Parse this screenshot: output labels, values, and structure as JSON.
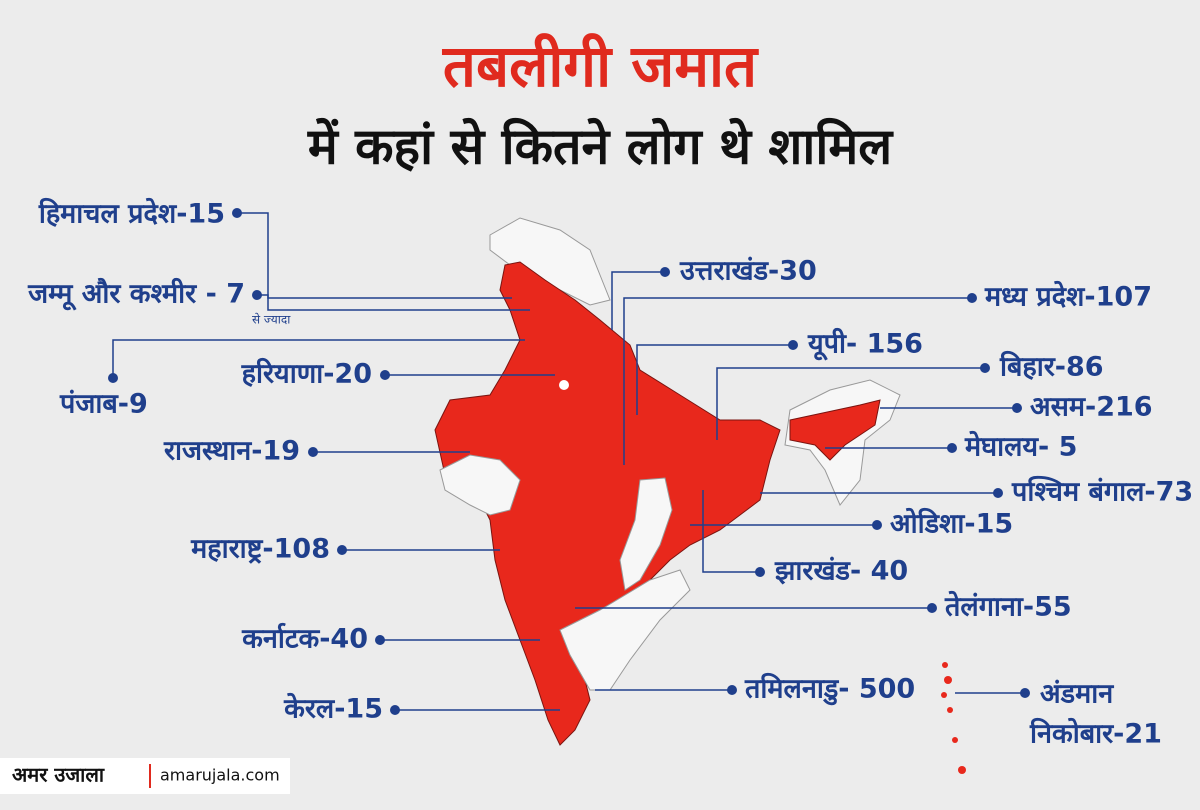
{
  "header": {
    "title": "तबलीगी जमात",
    "subtitle": "में कहां से कितने लोग थे शामिल"
  },
  "labels": [
    "हिमाचल प्रदेश-15",
    "जम्मू और कश्मीर - 7",
    "पंजाब-9",
    "हरियाणा-20",
    "राजस्थान-19",
    "महाराष्ट्र-108",
    "कर्नाटक-40",
    "केरल-15",
    "उत्तराखंड-30",
    "मध्य प्रदेश-107",
    "यूपी- 156",
    "बिहार-86",
    "असम-216",
    "मेघालय- 5",
    "पश्चिम बंगाल-73",
    "ओडिशा-15",
    "झारखंड- 40",
    "तेलंगाना-55",
    "तमिलनाडु- 500"
  ],
  "note": "से ज्यादा",
  "andaman": [
    "अंडमान",
    "निकोबार-21"
  ],
  "footer": {
    "brand": "अमर उजाला",
    "site": "amarujala.com"
  }
}
